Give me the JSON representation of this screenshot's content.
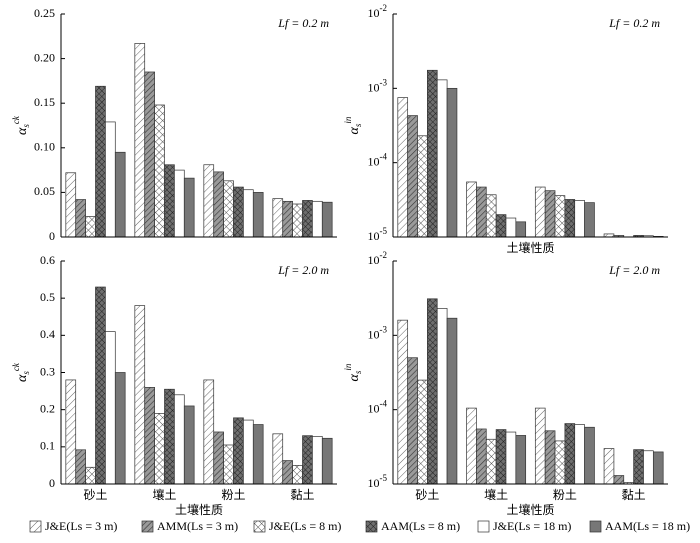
{
  "chart_data": [
    {
      "type": "bar",
      "annotation": "Lf = 0.2 m",
      "ylabel": "α",
      "ylabel_sub": "s",
      "ylabel_sup": "ck",
      "ylim": [
        0,
        0.25
      ],
      "yticks": [
        0,
        0.05,
        {
          "value": 0.1,
          "label": "0.10"
        },
        0.15,
        {
          "value": 0.2,
          "label": "0.20"
        },
        0.25
      ],
      "series": [
        {
          "name": "J&E(Ls = 3 m)",
          "color": "#ffffff",
          "pattern": "hatch-light",
          "values": [
            0.072,
            0.217,
            0.081,
            0.043
          ]
        },
        {
          "name": "AMM(Ls = 3 m)",
          "color": "#9a9a9a",
          "pattern": "hatch-dark",
          "values": [
            0.042,
            0.185,
            0.073,
            0.04
          ]
        },
        {
          "name": "J&E(Ls = 8 m)",
          "color": "#ffffff",
          "pattern": "cross-light",
          "values": [
            0.023,
            0.148,
            0.063,
            0.037
          ]
        },
        {
          "name": "AAM(Ls = 8 m)",
          "color": "#6e6e6e",
          "pattern": "cross-dark",
          "values": [
            0.169,
            0.081,
            0.056,
            0.041
          ]
        },
        {
          "name": "J&E(Ls = 18 m)",
          "color": "#ffffff",
          "pattern": "none",
          "values": [
            0.129,
            0.075,
            0.053,
            0.04
          ]
        },
        {
          "name": "AAM(Ls = 18 m)",
          "color": "#777777",
          "pattern": "none",
          "values": [
            0.095,
            0.066,
            0.05,
            0.039
          ]
        }
      ]
    },
    {
      "type": "bar",
      "annotation": "Lf = 0.2 m",
      "ylabel": "α",
      "ylabel_sub": "s",
      "ylabel_sup": "in",
      "xlabel": "土壤性质",
      "log": true,
      "ylim": [
        1e-05,
        0.01
      ],
      "yticks": [
        {
          "value": 1e-05,
          "label": "10",
          "exp": "-5"
        },
        {
          "value": 0.0001,
          "label": "10",
          "exp": "-4"
        },
        {
          "value": 0.001,
          "label": "10",
          "exp": "-3"
        },
        {
          "value": 0.01,
          "label": "10",
          "exp": "-2"
        }
      ],
      "series": [
        {
          "name": "J&E(Ls = 3 m)",
          "color": "#ffffff",
          "pattern": "hatch-light",
          "values": [
            0.00075,
            5.5e-05,
            4.7e-05,
            1.1e-05
          ]
        },
        {
          "name": "AMM(Ls = 3 m)",
          "color": "#9a9a9a",
          "pattern": "hatch-dark",
          "values": [
            0.00043,
            4.7e-05,
            4.2e-05,
            1.05e-05
          ]
        },
        {
          "name": "J&E(Ls = 8 m)",
          "color": "#ffffff",
          "pattern": "cross-light",
          "values": [
            0.00023,
            3.7e-05,
            3.6e-05,
            1e-05
          ]
        },
        {
          "name": "AAM(Ls = 8 m)",
          "color": "#6e6e6e",
          "pattern": "cross-dark",
          "values": [
            0.00175,
            2e-05,
            3.2e-05,
            1.05e-05
          ]
        },
        {
          "name": "J&E(Ls = 18 m)",
          "color": "#ffffff",
          "pattern": "none",
          "values": [
            0.0013,
            1.8e-05,
            3.1e-05,
            1.04e-05
          ]
        },
        {
          "name": "AAM(Ls = 18 m)",
          "color": "#777777",
          "pattern": "none",
          "values": [
            0.001,
            1.6e-05,
            2.9e-05,
            1.02e-05
          ]
        }
      ]
    },
    {
      "type": "bar",
      "annotation": "Lf = 2.0 m",
      "ylabel": "α",
      "ylabel_sub": "s",
      "ylabel_sup": "ck",
      "xlabel": "土壤性质",
      "categories": [
        "砂土",
        "壤土",
        "粉土",
        "黏土"
      ],
      "ylim": [
        0,
        0.6
      ],
      "yticks": [
        0,
        0.1,
        0.2,
        0.3,
        0.4,
        0.5,
        0.6
      ],
      "series": [
        {
          "name": "J&E(Ls = 3 m)",
          "color": "#ffffff",
          "pattern": "hatch-light",
          "values": [
            0.28,
            0.48,
            0.28,
            0.135
          ]
        },
        {
          "name": "AMM(Ls = 3 m)",
          "color": "#9a9a9a",
          "pattern": "hatch-dark",
          "values": [
            0.092,
            0.26,
            0.14,
            0.063
          ]
        },
        {
          "name": "J&E(Ls = 8 m)",
          "color": "#ffffff",
          "pattern": "cross-light",
          "values": [
            0.045,
            0.19,
            0.105,
            0.05
          ]
        },
        {
          "name": "AAM(Ls = 8 m)",
          "color": "#6e6e6e",
          "pattern": "cross-dark",
          "values": [
            0.53,
            0.255,
            0.178,
            0.13
          ]
        },
        {
          "name": "J&E(Ls = 18 m)",
          "color": "#ffffff",
          "pattern": "none",
          "values": [
            0.41,
            0.24,
            0.172,
            0.128
          ]
        },
        {
          "name": "AAM(Ls = 18 m)",
          "color": "#777777",
          "pattern": "none",
          "values": [
            0.3,
            0.21,
            0.16,
            0.123
          ]
        }
      ]
    },
    {
      "type": "bar",
      "annotation": "Lf = 2.0 m",
      "ylabel": "α",
      "ylabel_sub": "s",
      "ylabel_sup": "in",
      "xlabel": "土壤性质",
      "categories": [
        "砂土",
        "壤土",
        "粉土",
        "黏土"
      ],
      "log": true,
      "ylim": [
        1e-05,
        0.01
      ],
      "yticks": [
        {
          "value": 1e-05,
          "label": "10",
          "exp": "-5"
        },
        {
          "value": 0.0001,
          "label": "10",
          "exp": "-4"
        },
        {
          "value": 0.001,
          "label": "10",
          "exp": "-3"
        },
        {
          "value": 0.01,
          "label": "10",
          "exp": "-2"
        }
      ],
      "series": [
        {
          "name": "J&E(Ls = 3 m)",
          "color": "#ffffff",
          "pattern": "hatch-light",
          "values": [
            0.0016,
            0.000105,
            0.000105,
            3e-05
          ]
        },
        {
          "name": "AMM(Ls = 3 m)",
          "color": "#9a9a9a",
          "pattern": "hatch-dark",
          "values": [
            0.0005,
            5.5e-05,
            5.2e-05,
            1.3e-05
          ]
        },
        {
          "name": "J&E(Ls = 8 m)",
          "color": "#ffffff",
          "pattern": "cross-light",
          "values": [
            0.00025,
            4e-05,
            3.8e-05,
            1.05e-05
          ]
        },
        {
          "name": "AAM(Ls = 8 m)",
          "color": "#6e6e6e",
          "pattern": "cross-dark",
          "values": [
            0.0031,
            5.4e-05,
            6.5e-05,
            2.9e-05
          ]
        },
        {
          "name": "J&E(Ls = 18 m)",
          "color": "#ffffff",
          "pattern": "none",
          "values": [
            0.0023,
            5e-05,
            6.3e-05,
            2.8e-05
          ]
        },
        {
          "name": "AAM(Ls = 18 m)",
          "color": "#777777",
          "pattern": "none",
          "values": [
            0.0017,
            4.5e-05,
            5.8e-05,
            2.7e-05
          ]
        }
      ]
    }
  ]
}
